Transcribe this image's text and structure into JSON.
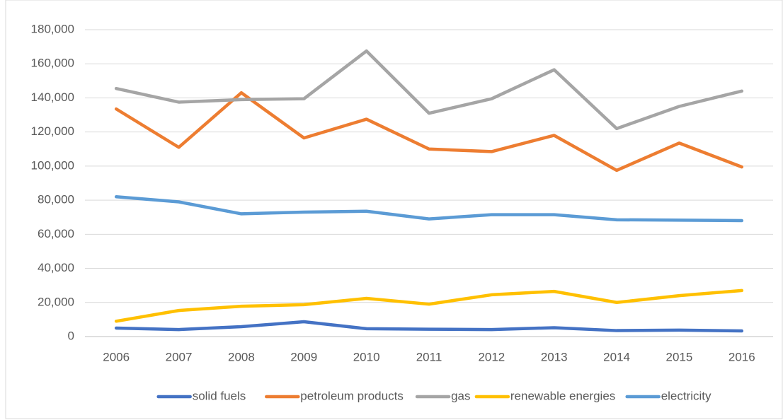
{
  "chart_data": {
    "type": "line",
    "categories": [
      "2006",
      "2007",
      "2008",
      "2009",
      "2010",
      "2011",
      "2012",
      "2013",
      "2014",
      "2015",
      "2016"
    ],
    "series": [
      {
        "name": "solid fuels",
        "color": "#4472c4",
        "values": [
          5000,
          4100,
          5800,
          8700,
          4600,
          4300,
          4100,
          5200,
          3500,
          3800,
          3300
        ]
      },
      {
        "name": "petroleum products",
        "color": "#ed7d31",
        "values": [
          133500,
          111000,
          143000,
          116500,
          127500,
          110000,
          108500,
          118000,
          97500,
          113500,
          99500
        ]
      },
      {
        "name": "gas",
        "color": "#a5a5a5",
        "values": [
          145500,
          137500,
          139000,
          139500,
          167500,
          131000,
          139500,
          156500,
          122000,
          135000,
          144000
        ]
      },
      {
        "name": "renewable energies",
        "color": "#ffc000",
        "values": [
          9000,
          15300,
          17800,
          18700,
          22400,
          19000,
          24500,
          26500,
          20000,
          24000,
          27000
        ]
      },
      {
        "name": "electricity",
        "color": "#5b9bd5",
        "values": [
          82000,
          79000,
          72000,
          73000,
          73500,
          69000,
          71500,
          71500,
          68500,
          68300,
          68000
        ]
      }
    ],
    "ylim": [
      0,
      180000
    ],
    "yticks": [
      0,
      {
        "value": 20000,
        "label": "20,000"
      },
      {
        "value": 40000,
        "label": "40,000"
      },
      {
        "value": 60000,
        "label": "60,000"
      },
      {
        "value": 80000,
        "label": "80,000"
      },
      {
        "value": 100000,
        "label": "100,000"
      },
      {
        "value": 120000,
        "label": "120,000"
      },
      {
        "value": 140000,
        "label": "140,000"
      },
      {
        "value": 160000,
        "label": "160,000"
      },
      {
        "value": 180000,
        "label": "180,000"
      }
    ],
    "grid": true,
    "legend": "bottom"
  }
}
